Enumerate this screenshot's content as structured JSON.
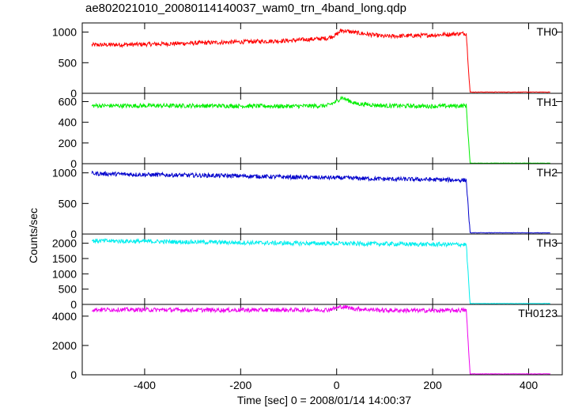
{
  "chart_data": {
    "type": "line",
    "title": "ae802021010_20080114140037_wam0_trn_4band_long.qdp",
    "xlabel": "Time [sec] 0 = 2008/01/14 14:00:37",
    "ylabel": "Counts/sec",
    "xlim": [
      -530,
      470
    ],
    "x_ticks": [
      -400,
      -200,
      0,
      200,
      400
    ],
    "time_range": [
      -510,
      445
    ],
    "drop_time": 278,
    "series": [
      {
        "name": "TH0",
        "color": "#ff0000",
        "ylim": [
          0,
          1150
        ],
        "yticks": [
          0,
          500,
          1000
        ],
        "values": [
          [
            -510,
            790
          ],
          [
            -400,
            800
          ],
          [
            -300,
            820
          ],
          [
            -200,
            840
          ],
          [
            -100,
            860
          ],
          [
            -20,
            900
          ],
          [
            0,
            960
          ],
          [
            10,
            1030
          ],
          [
            40,
            990
          ],
          [
            100,
            930
          ],
          [
            200,
            950
          ],
          [
            270,
            980
          ],
          [
            278,
            20
          ],
          [
            445,
            20
          ]
        ]
      },
      {
        "name": "TH1",
        "color": "#00ee00",
        "ylim": [
          0,
          680
        ],
        "yticks": [
          0,
          200,
          400,
          600
        ],
        "values": [
          [
            -510,
            560
          ],
          [
            -300,
            560
          ],
          [
            -100,
            555
          ],
          [
            -20,
            560
          ],
          [
            0,
            600
          ],
          [
            10,
            640
          ],
          [
            40,
            580
          ],
          [
            100,
            560
          ],
          [
            200,
            555
          ],
          [
            270,
            560
          ],
          [
            278,
            5
          ],
          [
            445,
            5
          ]
        ]
      },
      {
        "name": "TH2",
        "color": "#0000cc",
        "ylim": [
          0,
          1150
        ],
        "yticks": [
          0,
          500,
          1000
        ],
        "values": [
          [
            -510,
            990
          ],
          [
            -400,
            970
          ],
          [
            -300,
            960
          ],
          [
            -200,
            950
          ],
          [
            -100,
            930
          ],
          [
            0,
            920
          ],
          [
            100,
            900
          ],
          [
            200,
            890
          ],
          [
            270,
            880
          ],
          [
            278,
            20
          ],
          [
            445,
            20
          ]
        ]
      },
      {
        "name": "TH3",
        "color": "#00eeee",
        "ylim": [
          0,
          2300
        ],
        "yticks": [
          0,
          500,
          1000,
          1500,
          2000
        ],
        "values": [
          [
            -510,
            2080
          ],
          [
            -400,
            2060
          ],
          [
            -300,
            2040
          ],
          [
            -200,
            2020
          ],
          [
            -100,
            2000
          ],
          [
            0,
            1990
          ],
          [
            100,
            1980
          ],
          [
            200,
            1960
          ],
          [
            270,
            1960
          ],
          [
            278,
            30
          ],
          [
            445,
            30
          ]
        ]
      },
      {
        "name": "TH0123",
        "color": "#ee00ee",
        "ylim": [
          0,
          4800
        ],
        "yticks": [
          0,
          2000,
          4000
        ],
        "values": [
          [
            -510,
            4450
          ],
          [
            -300,
            4420
          ],
          [
            -100,
            4420
          ],
          [
            -20,
            4430
          ],
          [
            0,
            4550
          ],
          [
            10,
            4650
          ],
          [
            40,
            4500
          ],
          [
            100,
            4400
          ],
          [
            200,
            4380
          ],
          [
            270,
            4400
          ],
          [
            278,
            60
          ],
          [
            445,
            60
          ]
        ]
      }
    ]
  }
}
